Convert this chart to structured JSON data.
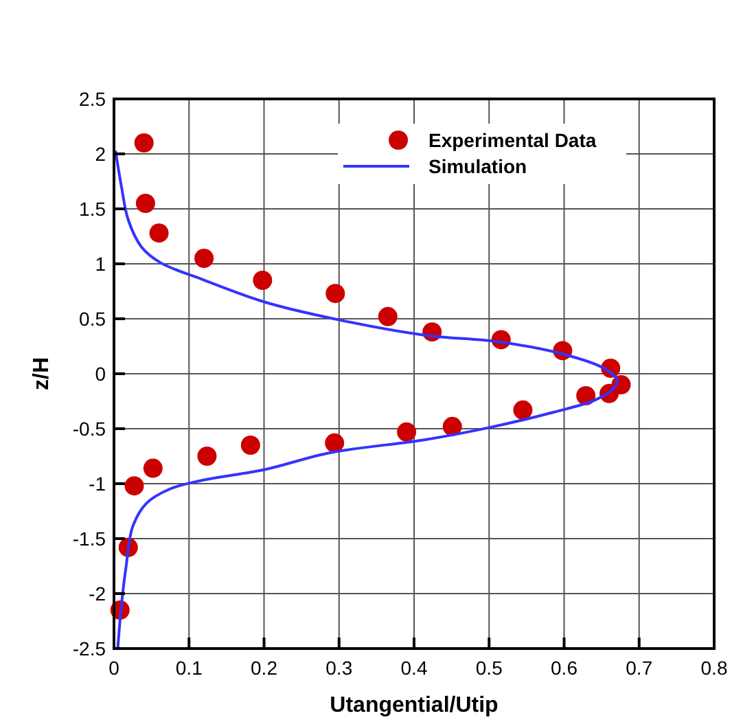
{
  "chart_data": {
    "type": "scatter",
    "xlabel": "Utangential/Utip",
    "ylabel": "z/H",
    "xlim": [
      0,
      0.8
    ],
    "ylim": [
      -2.5,
      2.5
    ],
    "xticks": [
      0,
      0.1,
      0.2,
      0.3,
      0.4,
      0.5,
      0.6,
      0.7,
      0.8
    ],
    "yticks": [
      -2.5,
      -2,
      -1.5,
      -1,
      -0.5,
      0,
      0.5,
      1,
      1.5,
      2,
      2.5
    ],
    "grid": true,
    "legend": "top right",
    "series": [
      {
        "name": "Experimental Data",
        "marker": "circle",
        "color": "#cc0000",
        "x": [
          0.04,
          0.042,
          0.06,
          0.12,
          0.198,
          0.295,
          0.365,
          0.424,
          0.516,
          0.598,
          0.662,
          0.676,
          0.66,
          0.629,
          0.545,
          0.451,
          0.39,
          0.294,
          0.182,
          0.124,
          0.052,
          0.027,
          0.019,
          0.008
        ],
        "values": [
          2.1,
          1.55,
          1.28,
          1.05,
          0.85,
          0.73,
          0.52,
          0.38,
          0.31,
          0.21,
          0.05,
          -0.1,
          -0.18,
          -0.2,
          -0.33,
          -0.48,
          -0.53,
          -0.63,
          -0.65,
          -0.75,
          -0.86,
          -1.02,
          -1.58,
          -2.15
        ]
      },
      {
        "name": "Simulation",
        "type": "line",
        "marker": "none",
        "line_style": "solid",
        "color": "#3333ff",
        "x": [
          0.002,
          0.01,
          0.019,
          0.037,
          0.062,
          0.117,
          0.202,
          0.3,
          0.415,
          0.513,
          0.598,
          0.653,
          0.671,
          0.665,
          0.641,
          0.586,
          0.5,
          0.415,
          0.287,
          0.202,
          0.117,
          0.074,
          0.043,
          0.025,
          0.016,
          0.01,
          0.005
        ],
        "values": [
          2.03,
          1.7,
          1.4,
          1.15,
          1.01,
          0.86,
          0.65,
          0.49,
          0.35,
          0.29,
          0.18,
          0.05,
          -0.06,
          -0.14,
          -0.24,
          -0.35,
          -0.49,
          -0.6,
          -0.72,
          -0.87,
          -0.97,
          -1.05,
          -1.18,
          -1.39,
          -1.76,
          -2.1,
          -2.5
        ]
      }
    ]
  }
}
